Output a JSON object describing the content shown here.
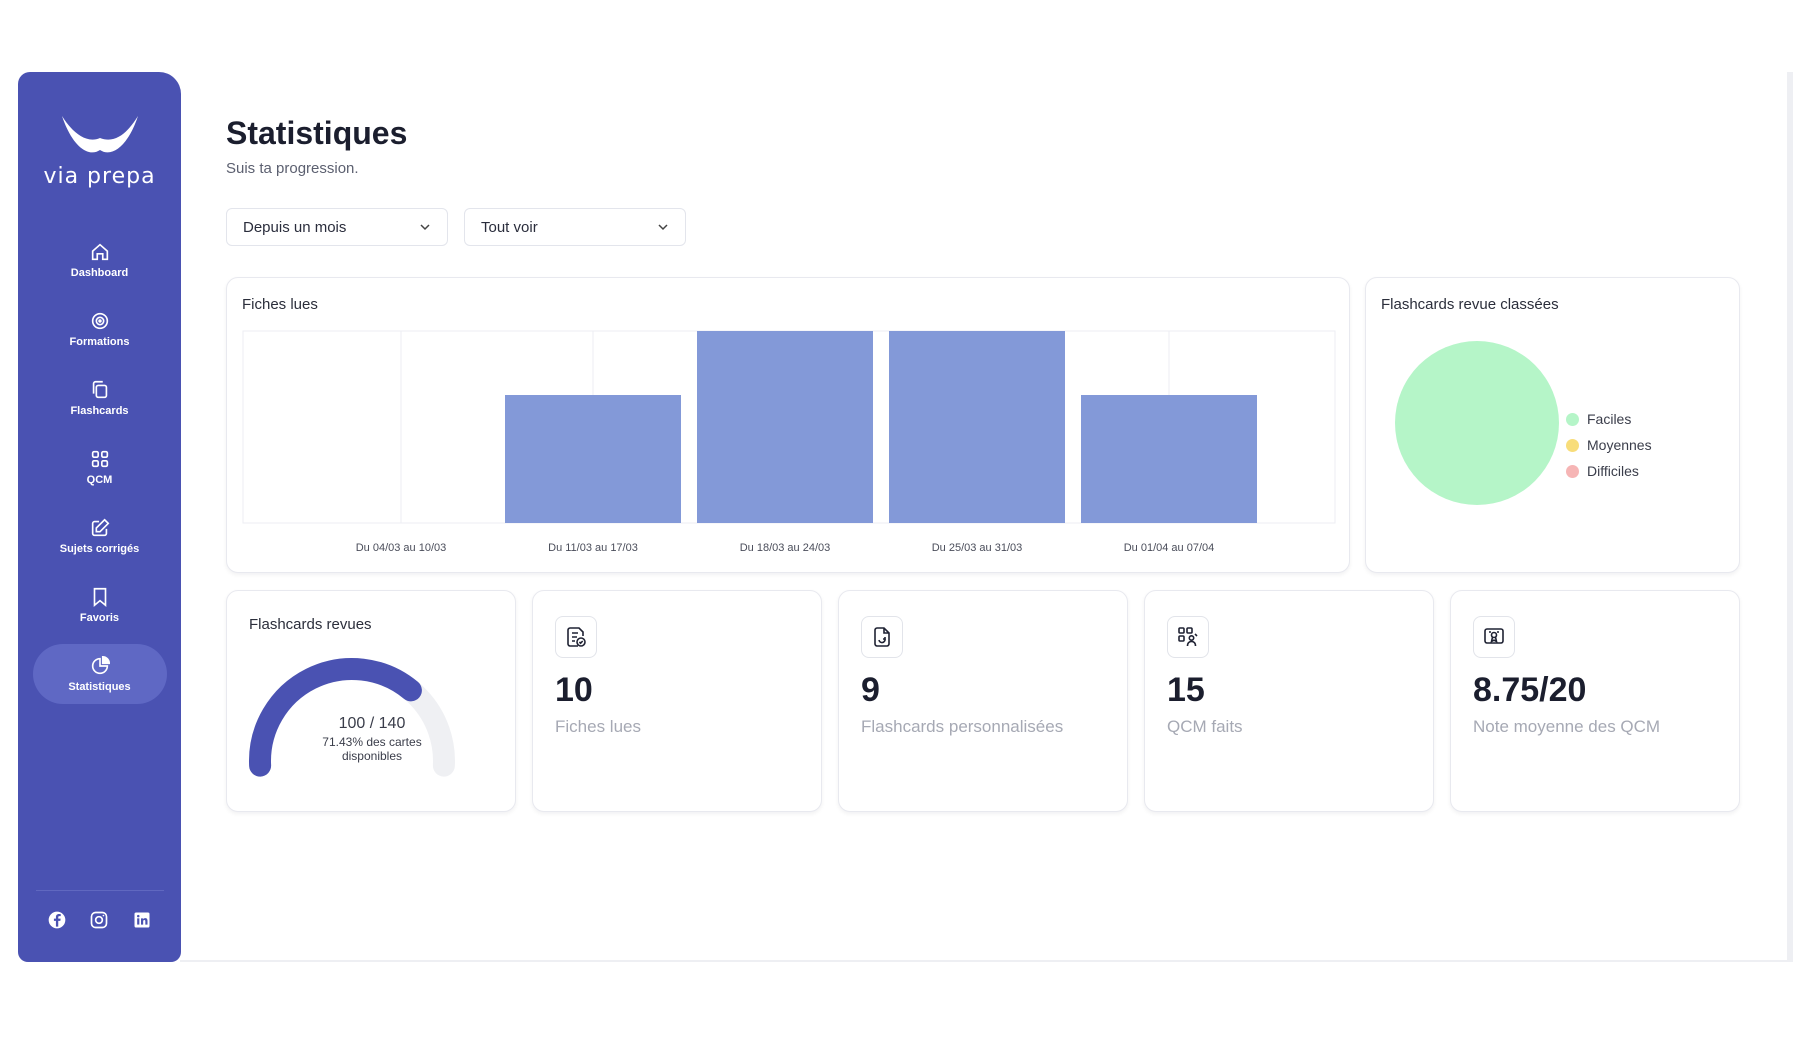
{
  "brand": {
    "name": "via prepa",
    "color": "#4a52b2"
  },
  "sidebar": {
    "items": [
      {
        "label": "Dashboard",
        "icon": "home-icon"
      },
      {
        "label": "Formations",
        "icon": "target-icon"
      },
      {
        "label": "Flashcards",
        "icon": "cards-icon"
      },
      {
        "label": "QCM",
        "icon": "grid-icon"
      },
      {
        "label": "Sujets corrigés",
        "icon": "edit-icon"
      },
      {
        "label": "Favoris",
        "icon": "bookmark-icon"
      },
      {
        "label": "Statistiques",
        "icon": "pie-chart-icon",
        "active": true
      }
    ],
    "socials": [
      "facebook-icon",
      "instagram-icon",
      "linkedin-icon"
    ]
  },
  "header": {
    "title": "Statistiques",
    "subtitle": "Suis ta progression."
  },
  "filters": {
    "period": {
      "value": "Depuis un mois"
    },
    "scope": {
      "value": "Tout voir"
    }
  },
  "fiches_chart": {
    "title": "Fiches lues",
    "bar_color": "#8399d8"
  },
  "flashcards_pie": {
    "title": "Flashcards revue classées",
    "legend": [
      {
        "label": "Faciles",
        "color": "#b5f5c8"
      },
      {
        "label": "Moyennes",
        "color": "#f8dd7a"
      },
      {
        "label": "Difficiles",
        "color": "#f6b5b5"
      }
    ]
  },
  "gauge": {
    "title": "Flashcards revues",
    "value_text": "100 / 140",
    "caption_line1": "71.43% des cartes",
    "caption_line2": "disponibles",
    "fraction": 0.7143,
    "color": "#4a52b2",
    "track_color": "#eff0f3"
  },
  "stats": [
    {
      "value": "10",
      "label": "Fiches lues",
      "icon": "document-check-icon"
    },
    {
      "value": "9",
      "label": "Flashcards personnalisées",
      "icon": "file-sync-icon"
    },
    {
      "value": "15",
      "label": "QCM faits",
      "icon": "quiz-person-icon"
    },
    {
      "value": "8.75/20",
      "label": "Note moyenne des QCM",
      "icon": "certificate-icon"
    }
  ],
  "chart_data": [
    {
      "type": "bar",
      "title": "Fiches lues",
      "categories": [
        "Du 04/03 au 10/03",
        "Du 11/03 au 17/03",
        "Du 18/03 au 24/03",
        "Du 25/03 au 31/03",
        "Du 01/04 au 07/04"
      ],
      "values": [
        0,
        2,
        3,
        3,
        2
      ],
      "ylim": [
        0,
        3
      ],
      "grid": true,
      "legend": "none"
    },
    {
      "type": "pie",
      "title": "Flashcards revue classées",
      "labels": [
        "Faciles",
        "Moyennes",
        "Difficiles"
      ],
      "values": [
        100,
        0,
        0
      ],
      "legend": "right"
    }
  ]
}
